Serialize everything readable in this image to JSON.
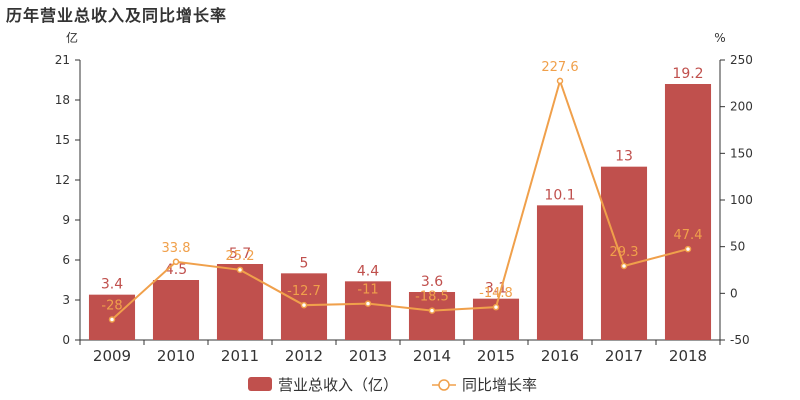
{
  "chart_data": {
    "type": "bar",
    "title": "历年营业总收入及同比增长率",
    "categories": [
      "2009",
      "2010",
      "2011",
      "2012",
      "2013",
      "2014",
      "2015",
      "2016",
      "2017",
      "2018"
    ],
    "series": [
      {
        "name": "营业总收入（亿）",
        "type": "bar",
        "axis": "left",
        "values": [
          3.4,
          4.5,
          5.7,
          5,
          4.4,
          3.6,
          3.1,
          10.1,
          13,
          19.2
        ],
        "labels": [
          "3.4",
          "4.5",
          "5.7",
          "5",
          "4.4",
          "3.6",
          "3.1",
          "10.1",
          "13",
          "19.2"
        ],
        "color": "#c0504d"
      },
      {
        "name": "同比增长率",
        "type": "line",
        "axis": "right",
        "values": [
          -28,
          33.8,
          25.2,
          -12.7,
          -11,
          -18.5,
          -14.8,
          227.6,
          29.3,
          47.4
        ],
        "labels": [
          "-28",
          "33.8",
          "25.2",
          "-12.7",
          "-11",
          "-18.5",
          "-14.8",
          "227.6",
          "29.3",
          "47.4"
        ],
        "color": "#f0a04b"
      }
    ],
    "y_left": {
      "unit": "亿",
      "ylim": [
        0,
        21
      ],
      "ticks": [
        "0",
        "3",
        "6",
        "9",
        "12",
        "15",
        "18",
        "21"
      ]
    },
    "y_right": {
      "unit": "%",
      "ylim": [
        -50,
        250
      ],
      "ticks": [
        "-50",
        "0",
        "50",
        "100",
        "150",
        "200",
        "250"
      ]
    },
    "grid": false,
    "legend_position": "bottom-center"
  }
}
